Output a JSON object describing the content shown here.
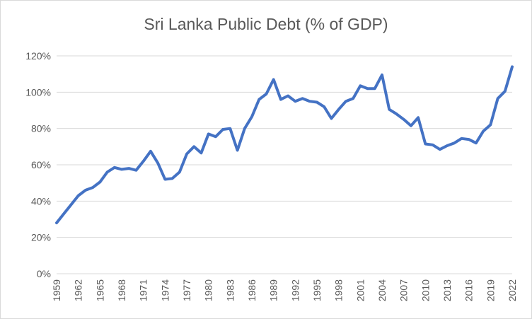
{
  "chart_data": {
    "type": "line",
    "title": "Sri Lanka Public Debt (% of GDP)",
    "xlabel": "",
    "ylabel": "",
    "ylim": [
      0,
      120
    ],
    "y_ticks": [
      "0%",
      "20%",
      "40%",
      "60%",
      "80%",
      "100%",
      "120%"
    ],
    "y_tick_values": [
      0,
      20,
      40,
      60,
      80,
      100,
      120
    ],
    "x_tick_labels": [
      "1959",
      "1962",
      "1965",
      "1968",
      "1971",
      "1974",
      "1977",
      "1980",
      "1983",
      "1986",
      "1989",
      "1992",
      "1995",
      "1998",
      "2001",
      "2004",
      "2007",
      "2010",
      "2013",
      "2016",
      "2019",
      "2022"
    ],
    "grid": true,
    "legend": "none",
    "line_color": "#4472c4",
    "series": [
      {
        "x": [
          1959,
          1960,
          1961,
          1962,
          1963,
          1964,
          1965,
          1966,
          1967,
          1968,
          1969,
          1970,
          1971,
          1972,
          1973,
          1974,
          1975,
          1976,
          1977,
          1978,
          1979,
          1980,
          1981,
          1982,
          1983,
          1984,
          1985,
          1986,
          1987,
          1988,
          1989,
          1990,
          1991,
          1992,
          1993,
          1994,
          1995,
          1996,
          1997,
          1998,
          1999,
          2000,
          2001,
          2002,
          2003,
          2004,
          2005,
          2006,
          2007,
          2008,
          2009,
          2010,
          2011,
          2012,
          2013,
          2014,
          2015,
          2016,
          2017,
          2018,
          2019,
          2020,
          2021,
          2022
        ],
        "values": [
          28,
          33,
          38,
          43,
          46,
          47.5,
          50.5,
          56,
          58.5,
          57.5,
          58,
          57,
          62,
          67.5,
          61,
          52,
          52.5,
          56,
          66,
          70,
          66.5,
          77,
          75.5,
          79.5,
          80,
          68,
          80,
          86.5,
          96,
          99,
          107,
          96,
          98,
          95,
          96.5,
          95,
          94.5,
          92,
          85.5,
          90.5,
          95,
          96.5,
          103.5,
          102,
          102,
          109.5,
          90.5,
          88,
          85,
          81.5,
          86,
          71.5,
          71,
          68.5,
          70.5,
          72,
          74.5,
          74,
          72,
          78.5,
          82,
          96.5,
          100.5,
          114
        ]
      }
    ]
  }
}
